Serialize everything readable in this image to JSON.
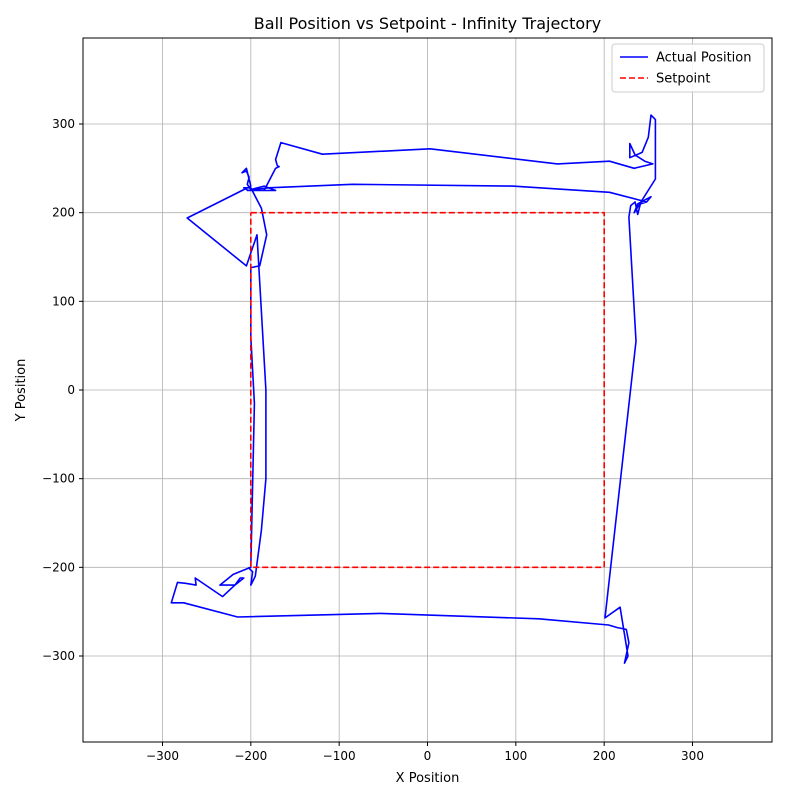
{
  "chart_data": {
    "type": "line",
    "title": "Ball Position vs Setpoint - Infinity Trajectory",
    "xlabel": "X Position",
    "ylabel": "Y Position",
    "xlim": [
      -390,
      390
    ],
    "ylim": [
      -397,
      397
    ],
    "xticks": [
      -300,
      -200,
      -100,
      0,
      100,
      200,
      300
    ],
    "yticks": [
      -300,
      -200,
      -100,
      0,
      100,
      200,
      300
    ],
    "grid": true,
    "legend_position": "top-right",
    "series": [
      {
        "name": "Actual Position",
        "color": "#0000ff",
        "style": "solid",
        "x": [
          -203,
          -198,
          -200,
          -195,
          -188,
          -183,
          -183,
          -193,
          -205,
          -272,
          -200,
          -205,
          -210,
          -205,
          -202,
          -204,
          -200,
          -185,
          -172,
          -203,
          -208,
          -200,
          -188,
          -182,
          -190,
          -200,
          -200,
          -196,
          -200,
          -220,
          -235,
          -218,
          -212,
          -208,
          -218,
          -232,
          -263,
          -262,
          -274,
          -283,
          -290,
          -276,
          -215,
          -54,
          126,
          205,
          215,
          225,
          228,
          223,
          227,
          218,
          201,
          236,
          228,
          230,
          235,
          238,
          241,
          248,
          253,
          238,
          234,
          258,
          258,
          253,
          250,
          243,
          229,
          229,
          235,
          246,
          255,
          234,
          206,
          147,
          3,
          -119,
          -166,
          -172,
          -170,
          -168,
          -172,
          -185,
          -204,
          -180,
          -85,
          96,
          206,
          248
        ],
        "y": [
          -200,
          -205,
          -220,
          -210,
          -158,
          -100,
          0,
          175,
          140,
          194,
          230,
          250,
          245,
          247,
          240,
          232,
          226,
          230,
          225,
          225,
          228,
          228,
          205,
          175,
          140,
          138,
          60,
          -15,
          -200,
          -208,
          -220,
          -220,
          -212,
          -212,
          -220,
          -233,
          -212,
          -220,
          -218,
          -217,
          -240,
          -240,
          -256,
          -252,
          -258,
          -265,
          -268,
          -270,
          -285,
          -308,
          -300,
          -245,
          -257,
          55,
          195,
          208,
          212,
          198,
          210,
          212,
          218,
          210,
          200,
          238,
          305,
          310,
          285,
          268,
          262,
          278,
          265,
          258,
          255,
          250,
          258,
          255,
          272,
          266,
          279,
          260,
          253,
          252,
          250,
          225,
          225,
          228,
          232,
          230,
          223,
          212
        ]
      },
      {
        "name": "Setpoint",
        "color": "#ff0000",
        "style": "dashed",
        "x": [
          -200,
          200,
          200,
          -200,
          -200
        ],
        "y": [
          200,
          200,
          -200,
          -200,
          200
        ]
      }
    ]
  }
}
